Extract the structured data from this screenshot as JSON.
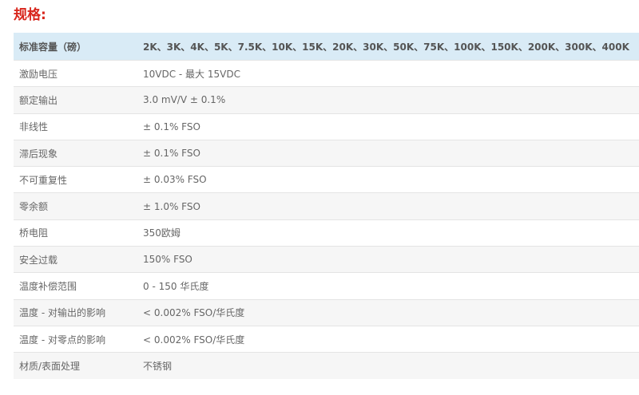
{
  "title": "规格:",
  "header": {
    "label": "标准容量（磅）",
    "value": "2K、3K、4K、5K、7.5K、10K、15K、20K、30K、50K、75K、100K、150K、200K、300K、400K"
  },
  "rows": [
    {
      "label": "激励电压",
      "value": "10VDC - 最大 15VDC"
    },
    {
      "label": "额定输出",
      "value": "3.0 mV/V ± 0.1%"
    },
    {
      "label": "非线性",
      "value": "± 0.1% FSO"
    },
    {
      "label": "滞后现象",
      "value": "± 0.1% FSO"
    },
    {
      "label": "不可重复性",
      "value": "± 0.03% FSO"
    },
    {
      "label": "零余额",
      "value": "± 1.0% FSO"
    },
    {
      "label": "桥电阻",
      "value": "350欧姆"
    },
    {
      "label": "安全过载",
      "value": "150% FSO"
    },
    {
      "label": "温度补偿范围",
      "value": "0 - 150 华氏度"
    },
    {
      "label": "温度 - 对输出的影响",
      "value": "< 0.002% FSO/华氏度"
    },
    {
      "label": "温度 - 对零点的影响",
      "value": "< 0.002% FSO/华氏度"
    },
    {
      "label": "材质/表面处理",
      "value": "不锈钢"
    }
  ]
}
